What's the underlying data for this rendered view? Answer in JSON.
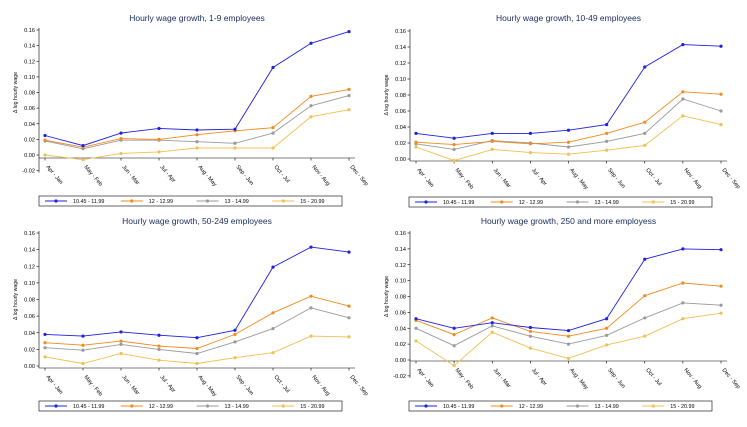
{
  "series_colors": [
    "#1f1fe0",
    "#f28a1f",
    "#9a9a9a",
    "#f0c050"
  ],
  "legend_labels": [
    "10.45 - 11.99",
    "12 - 12.99",
    "13 - 14.99",
    "15 - 20.99"
  ],
  "chart_data": [
    {
      "type": "line",
      "title": "Hourly wage growth, 1-9 employees",
      "ylabel": "Δ log hourly wage",
      "ylim": [
        -0.01,
        0.16
      ],
      "yticks": [
        "0.16",
        "0.14",
        "0.12",
        "0.10",
        "0.08",
        "0.06",
        "0.04",
        "0.02",
        "0.00",
        "-0.02"
      ],
      "ytick_values": [
        0.16,
        0.14,
        0.12,
        0.1,
        0.08,
        0.06,
        0.04,
        0.02,
        0.0,
        -0.02
      ],
      "categories": [
        "Apr - Jan",
        "May - Feb",
        "Jun - Mar",
        "Jul - Apr",
        "Aug - May",
        "Sep - Jun",
        "Oct - Jul",
        "Nov - Aug",
        "Dec - Sep"
      ],
      "series": [
        {
          "name": "10.45 - 11.99",
          "values": [
            0.025,
            0.012,
            0.028,
            0.034,
            0.032,
            0.033,
            0.112,
            0.143,
            0.158
          ]
        },
        {
          "name": "12 - 12.99",
          "values": [
            0.019,
            0.01,
            0.021,
            0.02,
            0.026,
            0.031,
            0.035,
            0.075,
            0.084
          ]
        },
        {
          "name": "13 - 14.99",
          "values": [
            0.018,
            0.008,
            0.019,
            0.019,
            0.017,
            0.015,
            0.028,
            0.063,
            0.076
          ]
        },
        {
          "name": "15 - 20.99",
          "values": [
            0.0,
            -0.006,
            0.002,
            0.004,
            0.009,
            0.009,
            0.009,
            0.049,
            0.058
          ]
        }
      ]
    },
    {
      "type": "line",
      "title": "Hourly wage growth, 10-49 employees",
      "ylabel": "Δ log hourly wage",
      "ylim": [
        -0.002,
        0.16
      ],
      "yticks": [
        "0.16",
        "0.14",
        "0.12",
        "0.10",
        "0.08",
        "0.06",
        "0.04",
        "0.02",
        "0.00"
      ],
      "ytick_values": [
        0.16,
        0.14,
        0.12,
        0.1,
        0.08,
        0.06,
        0.04,
        0.02,
        0.0
      ],
      "categories": [
        "Apr - Jan",
        "May - Feb",
        "Jun - Mar",
        "Jul - Apr",
        "Aug - May",
        "Sep - Jun",
        "Oct - Jul",
        "Nov - Aug",
        "Dec - Sep"
      ],
      "series": [
        {
          "name": "10.45 - 11.99",
          "values": [
            0.032,
            0.026,
            0.032,
            0.032,
            0.036,
            0.043,
            0.115,
            0.143,
            0.141
          ]
        },
        {
          "name": "12 - 12.99",
          "values": [
            0.021,
            0.018,
            0.022,
            0.019,
            0.021,
            0.032,
            0.046,
            0.084,
            0.081
          ]
        },
        {
          "name": "13 - 14.99",
          "values": [
            0.019,
            0.012,
            0.023,
            0.02,
            0.015,
            0.022,
            0.032,
            0.075,
            0.06
          ]
        },
        {
          "name": "15 - 20.99",
          "values": [
            0.015,
            -0.002,
            0.012,
            0.008,
            0.006,
            0.011,
            0.017,
            0.054,
            0.043
          ]
        }
      ]
    },
    {
      "type": "line",
      "title": "Hourly wage growth, 50-249 employees",
      "ylabel": "Δ log hourly wage",
      "ylim": [
        0,
        0.16
      ],
      "yticks": [
        "0.16",
        "0.14",
        "0.12",
        "0.10",
        "0.08",
        "0.06",
        "0.04",
        "0.02",
        "0.00"
      ],
      "ytick_values": [
        0.16,
        0.14,
        0.12,
        0.1,
        0.08,
        0.06,
        0.04,
        0.02,
        0.0
      ],
      "categories": [
        "Apr - Jan",
        "May - Feb",
        "Jun - Mar",
        "Jul - Apr",
        "Aug - May",
        "Sep - Jun",
        "Oct - Jul",
        "Nov - Aug",
        "Dec - Sep"
      ],
      "series": [
        {
          "name": "10.45 - 11.99",
          "values": [
            0.038,
            0.036,
            0.041,
            0.037,
            0.034,
            0.043,
            0.119,
            0.143,
            0.137
          ]
        },
        {
          "name": "12 - 12.99",
          "values": [
            0.028,
            0.025,
            0.03,
            0.024,
            0.021,
            0.038,
            0.064,
            0.084,
            0.072
          ]
        },
        {
          "name": "13 - 14.99",
          "values": [
            0.022,
            0.019,
            0.026,
            0.02,
            0.015,
            0.029,
            0.045,
            0.07,
            0.058
          ]
        },
        {
          "name": "15 - 20.99",
          "values": [
            0.011,
            0.003,
            0.015,
            0.007,
            0.003,
            0.01,
            0.016,
            0.036,
            0.035
          ]
        }
      ]
    },
    {
      "type": "line",
      "title": "Hourly wage growth, 250 and more employess",
      "ylabel": "Δ log hourly wage",
      "ylim": [
        -0.01,
        0.16
      ],
      "yticks": [
        "0.16",
        "0.14",
        "0.12",
        "0.10",
        "0.08",
        "0.06",
        "0.04",
        "0.02",
        "0.00",
        "-0.02"
      ],
      "ytick_values": [
        0.16,
        0.14,
        0.12,
        0.1,
        0.08,
        0.06,
        0.04,
        0.02,
        0.0,
        -0.02
      ],
      "categories": [
        "Apr - Jan",
        "May - Feb",
        "Jun - Mar",
        "Jul - Apr",
        "Aug - May",
        "Sep - Jun",
        "Oct - Jul",
        "Nov - Aug",
        "Dec - Sep"
      ],
      "series": [
        {
          "name": "10.45 - 11.99",
          "values": [
            0.052,
            0.04,
            0.047,
            0.041,
            0.037,
            0.052,
            0.127,
            0.14,
            0.139
          ]
        },
        {
          "name": "12 - 12.99",
          "values": [
            0.05,
            0.032,
            0.053,
            0.036,
            0.03,
            0.04,
            0.081,
            0.097,
            0.093
          ]
        },
        {
          "name": "13 - 14.99",
          "values": [
            0.04,
            0.018,
            0.043,
            0.03,
            0.02,
            0.031,
            0.053,
            0.072,
            0.069
          ]
        },
        {
          "name": "15 - 20.99",
          "values": [
            0.024,
            -0.007,
            0.035,
            0.015,
            0.002,
            0.019,
            0.03,
            0.052,
            0.059
          ]
        }
      ]
    }
  ]
}
